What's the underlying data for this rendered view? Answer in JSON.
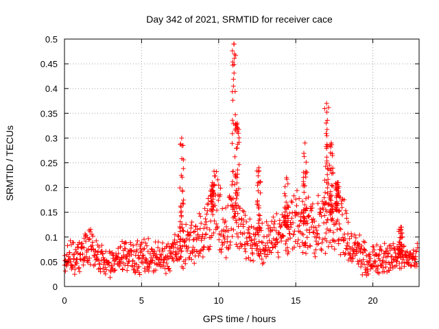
{
  "chart_data": {
    "type": "scatter",
    "title": "Day 342 of 2021, SRMTID for receiver cace",
    "xlabel": "GPS time / hours",
    "ylabel": "SRMTID / TECUs",
    "xlim": [
      0,
      23
    ],
    "ylim": [
      0,
      0.5
    ],
    "x_ticks": [
      0,
      5,
      10,
      15,
      20
    ],
    "x_tick_labels": [
      "0",
      "5",
      "10",
      "15",
      "20"
    ],
    "y_ticks": [
      0,
      0.05,
      0.1,
      0.15,
      0.2,
      0.25,
      0.3,
      0.35,
      0.4,
      0.45,
      0.5
    ],
    "y_tick_labels": [
      "0",
      "0.05",
      "0.1",
      "0.15",
      "0.2",
      "0.25",
      "0.3",
      "0.35",
      "0.4",
      "0.45",
      "0.5"
    ],
    "grid": true,
    "marker": "+",
    "color": "#ff0000",
    "x_end": 22.9,
    "baseline": [
      [
        0.0,
        0.06
      ],
      [
        1.0,
        0.06
      ],
      [
        1.6,
        0.085
      ],
      [
        2.2,
        0.06
      ],
      [
        3.0,
        0.045
      ],
      [
        4.0,
        0.065
      ],
      [
        5.0,
        0.06
      ],
      [
        6.0,
        0.065
      ],
      [
        6.8,
        0.06
      ],
      [
        7.5,
        0.08
      ],
      [
        8.5,
        0.09
      ],
      [
        9.3,
        0.115
      ],
      [
        9.8,
        0.17
      ],
      [
        10.4,
        0.11
      ],
      [
        11.0,
        0.16
      ],
      [
        11.5,
        0.12
      ],
      [
        12.0,
        0.09
      ],
      [
        13.0,
        0.085
      ],
      [
        14.0,
        0.11
      ],
      [
        15.0,
        0.13
      ],
      [
        16.0,
        0.12
      ],
      [
        17.0,
        0.13
      ],
      [
        18.0,
        0.13
      ],
      [
        18.6,
        0.08
      ],
      [
        19.5,
        0.055
      ],
      [
        20.5,
        0.055
      ],
      [
        21.5,
        0.06
      ],
      [
        22.9,
        0.06
      ]
    ],
    "spikes": [
      {
        "x": 7.6,
        "y_max": 0.3
      },
      {
        "x": 9.6,
        "y_max": 0.21
      },
      {
        "x": 11.0,
        "y_max": 0.49
      },
      {
        "x": 11.2,
        "y_max": 0.33
      },
      {
        "x": 12.6,
        "y_max": 0.24
      },
      {
        "x": 14.4,
        "y_max": 0.22
      },
      {
        "x": 15.6,
        "y_max": 0.29
      },
      {
        "x": 17.0,
        "y_max": 0.37
      },
      {
        "x": 17.3,
        "y_max": 0.29
      },
      {
        "x": 17.7,
        "y_max": 0.21
      },
      {
        "x": 21.8,
        "y_max": 0.12
      }
    ]
  }
}
